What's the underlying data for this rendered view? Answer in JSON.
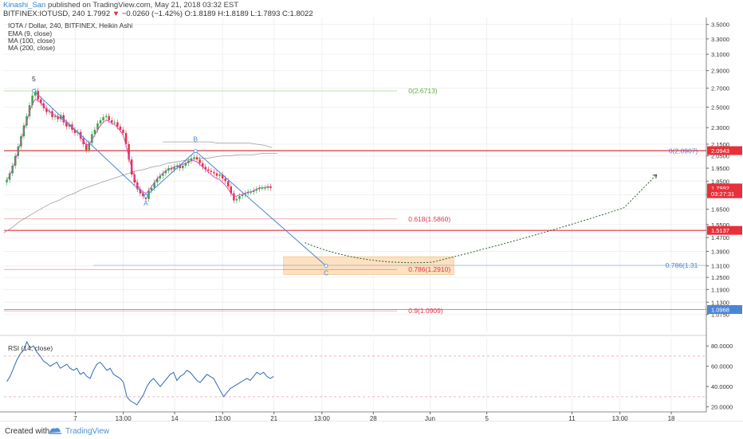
{
  "header": {
    "author": "Kinashi_San",
    "published": "published on TradingView.com, May 21, 2018 03:32 EST",
    "symbol": "BITFINEX:IOTUSD, 240",
    "last": "1.7992",
    "change_arrow": "▼",
    "change": "−0.0260 (−1.42%)",
    "ohlc": "O:1.8189 H:1.8189 L:1.7893 C:1.8022"
  },
  "legend": {
    "title": "IOTA / Dollar, 240, BITFINEX, Heikin Ashi",
    "ema": "EMA (9, close)",
    "ma100": "MA (100, close)",
    "ma200": "MA (200, close)"
  },
  "footer": {
    "created": "Created with",
    "brand": "TradingView"
  },
  "colors": {
    "up": "#3aa34a",
    "down": "#e0344a",
    "ema": "#e040c0",
    "ma": "#9e9e9e",
    "wave": "#4a86d6",
    "fib_green": "#69a84a",
    "fib_red": "#e0344a",
    "fib_blue": "#4a86d6",
    "zone": "#fcd9b0",
    "rsi": "#2f68b8",
    "hline_red": "#e8303a"
  },
  "chart_data": [
    {
      "type": "candlestick",
      "title": "IOTA / Dollar, 240, BITFINEX, Heikin Ashi",
      "yscale": "log",
      "ylim": [
        1.0,
        3.6
      ],
      "y_ticks": [
        "3.5000",
        "3.3000",
        "3.1000",
        "2.9000",
        "2.7000",
        "2.5000",
        "2.3000",
        "2.1500",
        "2.0500",
        "1.9500",
        "1.8500",
        "1.7500",
        "1.6500",
        "1.5500",
        "1.4700",
        "1.3900",
        "1.3100",
        "1.2500",
        "1.1900",
        "1.1300",
        "1.0750"
      ],
      "x_ticks": [
        {
          "label": "7",
          "d": 5.33
        },
        {
          "label": "13:00",
          "d": 8.71
        },
        {
          "label": "14",
          "d": 12.33
        },
        {
          "label": "13:00",
          "d": 15.71
        },
        {
          "label": "21",
          "d": 19.33
        },
        {
          "label": "13:00",
          "d": 22.71
        },
        {
          "label": "28",
          "d": 26.33
        },
        {
          "label": "Jun",
          "d": 30.33
        },
        {
          "label": "5",
          "d": 34.33
        },
        {
          "label": "11",
          "d": 40.33
        },
        {
          "label": "13:00",
          "d": 43.71
        },
        {
          "label": "18",
          "d": 47.33
        }
      ],
      "series_close": [
        1.86,
        1.91,
        1.97,
        2.05,
        2.13,
        2.22,
        2.32,
        2.41,
        2.52,
        2.62,
        2.67,
        2.58,
        2.54,
        2.49,
        2.45,
        2.46,
        2.4,
        2.41,
        2.38,
        2.42,
        2.35,
        2.31,
        2.33,
        2.28,
        2.25,
        2.26,
        2.2,
        2.15,
        2.1,
        2.16,
        2.24,
        2.28,
        2.34,
        2.37,
        2.4,
        2.41,
        2.37,
        2.35,
        2.35,
        2.31,
        2.28,
        2.25,
        2.15,
        2.02,
        1.9,
        1.84,
        1.79,
        1.76,
        1.74,
        1.72,
        1.78,
        1.8,
        1.84,
        1.87,
        1.89,
        1.91,
        1.93,
        1.95,
        1.94,
        1.96,
        1.97,
        1.95,
        1.97,
        1.99,
        2.01,
        2.03,
        2.04,
        2.02,
        1.99,
        1.96,
        1.94,
        1.93,
        1.92,
        1.91,
        1.89,
        1.9,
        1.87,
        1.85,
        1.81,
        1.76,
        1.71,
        1.72,
        1.74,
        1.75,
        1.76,
        1.77,
        1.77,
        1.78,
        1.79,
        1.8,
        1.8,
        1.8,
        1.81,
        1.8
      ],
      "ema": [
        1.86,
        1.89,
        1.94,
        2.01,
        2.09,
        2.18,
        2.27,
        2.36,
        2.45,
        2.53,
        2.58,
        2.57,
        2.54,
        2.51,
        2.48,
        2.46,
        2.43,
        2.42,
        2.4,
        2.39,
        2.37,
        2.34,
        2.32,
        2.3,
        2.27,
        2.26,
        2.22,
        2.18,
        2.14,
        2.15,
        2.19,
        2.23,
        2.28,
        2.32,
        2.35,
        2.37,
        2.36,
        2.34,
        2.33,
        2.3,
        2.27,
        2.23,
        2.14,
        2.04,
        1.95,
        1.88,
        1.82,
        1.79,
        1.77,
        1.76,
        1.78,
        1.81,
        1.84,
        1.87,
        1.89,
        1.91,
        1.93,
        1.94,
        1.95,
        1.96,
        1.97,
        1.97,
        1.98,
        1.99,
        2.0,
        2.01,
        2.01,
        2.0,
        1.98,
        1.96,
        1.94,
        1.92,
        1.9,
        1.88,
        1.87,
        1.86,
        1.84,
        1.82,
        1.79,
        1.76,
        1.74,
        1.74,
        1.75,
        1.75,
        1.76,
        1.77,
        1.77,
        1.78,
        1.79,
        1.8,
        1.8,
        1.8,
        1.81,
        1.8
      ],
      "ma100": [
        1.5,
        1.53,
        1.57,
        1.6,
        1.63,
        1.66,
        1.69,
        1.71,
        1.74,
        1.76,
        1.79,
        1.81,
        1.83,
        1.85,
        1.87,
        1.89,
        1.91,
        1.93,
        1.94,
        1.96,
        1.97,
        1.99,
        2.0,
        2.01,
        2.02,
        2.03,
        2.03,
        2.04,
        2.05,
        2.05,
        2.06,
        2.06,
        2.06,
        2.07,
        2.07,
        2.07
      ],
      "ma200": [
        2.17,
        2.17,
        2.17,
        2.17,
        2.17,
        2.17,
        2.17,
        2.16,
        2.16,
        2.16,
        2.16,
        2.16,
        2.15,
        2.14,
        2.12
      ],
      "elliott_points": [
        {
          "label": "5",
          "d": 2.4,
          "v": 2.671
        },
        {
          "label": "A",
          "d": 10.3,
          "v": 1.74
        },
        {
          "label": "B",
          "d": 13.8,
          "v": 2.09
        },
        {
          "label": "C",
          "d": 23.0,
          "v": 1.31
        }
      ],
      "fib_levels": [
        {
          "label": "0(2.6713)",
          "value": 2.6713,
          "color": "green"
        },
        {
          "label": "0(2.0907)",
          "value": 2.0907,
          "color": "blue"
        },
        {
          "label": "0.618(1.5860)",
          "value": 1.586,
          "color": "red"
        },
        {
          "label": "0.786(1.2910)",
          "value": 1.291,
          "color": "red"
        },
        {
          "label": "0.786(1.31",
          "value": 1.313,
          "color": "blue"
        },
        {
          "label": "0.9(1.0909)",
          "value": 1.0909,
          "color": "red"
        }
      ],
      "horizontal_lines": [
        {
          "label": "2.0943",
          "value": 2.0943,
          "color": "red"
        },
        {
          "label": "1.5137",
          "value": 1.5137,
          "color": "red"
        },
        {
          "label": "1.0968",
          "value": 1.0968,
          "color": "blue"
        }
      ],
      "price_tags": [
        {
          "label": "1.7992",
          "value": 1.7992,
          "color": "red"
        },
        {
          "label": "03:27:31",
          "value": 1.757,
          "color": "red"
        }
      ],
      "zone": {
        "d_from": 20.0,
        "d_to": 32.0,
        "v_high": 1.36,
        "v_low": 1.265
      },
      "projection": [
        [
          21.5,
          1.44
        ],
        [
          25.5,
          1.31
        ],
        [
          30.5,
          1.33
        ],
        [
          38.0,
          1.48
        ],
        [
          44.0,
          1.66
        ],
        [
          46.3,
          1.9
        ]
      ]
    },
    {
      "type": "line",
      "title": "RSI (14, close)",
      "ylim": [
        15,
        88
      ],
      "y_ticks": [
        "80.0000",
        "60.0000",
        "40.0000",
        "20.0000"
      ],
      "bands": [
        70,
        30
      ],
      "values": [
        45,
        50,
        58,
        66,
        72,
        76,
        84,
        78,
        80,
        74,
        70,
        65,
        63,
        60,
        62,
        64,
        58,
        60,
        62,
        58,
        56,
        58,
        52,
        54,
        50,
        48,
        56,
        62,
        64,
        60,
        56,
        58,
        52,
        50,
        48,
        44,
        30,
        26,
        24,
        22,
        27,
        32,
        40,
        45,
        48,
        44,
        40,
        44,
        48,
        52,
        54,
        46,
        50,
        52,
        56,
        54,
        50,
        46,
        44,
        48,
        52,
        50,
        48,
        42,
        36,
        30,
        34,
        38,
        40,
        42,
        44,
        46,
        48,
        46,
        50,
        54,
        52,
        54,
        50,
        48,
        50
      ]
    }
  ]
}
